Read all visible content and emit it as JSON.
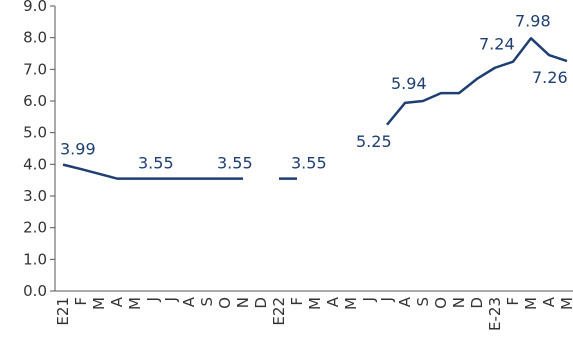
{
  "chart_data": {
    "type": "line",
    "categories": [
      "E21",
      "F",
      "M",
      "A",
      "M",
      "J",
      "J",
      "A",
      "S",
      "O",
      "N",
      "D",
      "E22",
      "F",
      "M",
      "A",
      "M",
      "J",
      "J",
      "A",
      "S",
      "O",
      "N",
      "D",
      "E-23",
      "F",
      "M",
      "A",
      "M"
    ],
    "series": [
      {
        "color": "#1f3f73",
        "values": [
          3.99,
          3.85,
          3.7,
          3.55,
          3.55,
          3.55,
          3.55,
          3.55,
          3.55,
          3.55,
          3.55,
          null,
          3.55,
          3.55,
          null,
          null,
          null,
          null,
          5.25,
          5.94,
          6.0,
          6.25,
          6.25,
          6.7,
          7.05,
          7.24,
          7.98,
          7.45,
          7.26
        ],
        "value_labels": [
          "3.99",
          null,
          null,
          null,
          null,
          "3.55",
          null,
          null,
          null,
          null,
          "3.55",
          null,
          null,
          "3.55",
          null,
          null,
          null,
          null,
          "5.25",
          "5.94",
          null,
          null,
          null,
          null,
          null,
          "7.24",
          "7.98",
          null,
          "7.26"
        ]
      }
    ],
    "ylim": [
      0,
      9
    ],
    "yticks": [
      {
        "value": 0,
        "label": "0.0"
      },
      {
        "value": 1,
        "label": "1.0"
      },
      {
        "value": 2,
        "label": "2.0"
      },
      {
        "value": 3,
        "label": "3.0"
      },
      {
        "value": 4,
        "label": "4.0"
      },
      {
        "value": 5,
        "label": "5.0"
      },
      {
        "value": 6,
        "label": "6.0"
      },
      {
        "value": 7,
        "label": "7.0"
      },
      {
        "value": 8,
        "label": "8.0"
      },
      {
        "value": 9,
        "label": "9.0"
      }
    ],
    "grid": false
  }
}
